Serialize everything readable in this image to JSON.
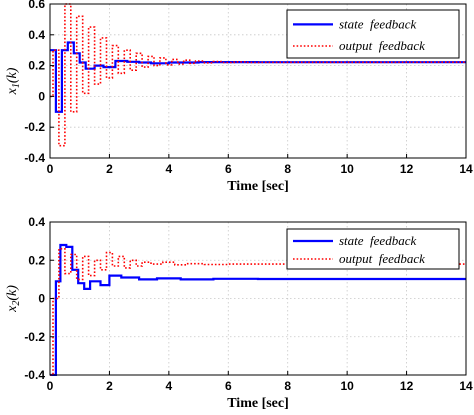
{
  "chart_data": [
    {
      "type": "line",
      "ylabel_main": "x",
      "ylabel_sub": "1",
      "ylabel_arg": "(k)",
      "xlabel": "Time [sec]",
      "xlim": [
        0,
        14
      ],
      "ylim": [
        -0.4,
        0.6
      ],
      "xticks": [
        0,
        2,
        4,
        6,
        8,
        10,
        12,
        14
      ],
      "yticks": [
        -0.4,
        -0.2,
        0,
        0.2,
        0.4,
        0.6
      ],
      "grid": true,
      "legend_position": "top-right",
      "colors": {
        "state": "#0000ff",
        "output": "#ff0000"
      },
      "series": [
        {
          "name": "state  feedback",
          "style": "solid",
          "points": [
            [
              0,
              0.3
            ],
            [
              0.2,
              0.3
            ],
            [
              0.2,
              -0.1
            ],
            [
              0.4,
              -0.1
            ],
            [
              0.4,
              0.3
            ],
            [
              0.6,
              0.3
            ],
            [
              0.6,
              0.35
            ],
            [
              0.8,
              0.35
            ],
            [
              0.8,
              0.28
            ],
            [
              1.0,
              0.28
            ],
            [
              1.0,
              0.22
            ],
            [
              1.2,
              0.22
            ],
            [
              1.2,
              0.18
            ],
            [
              1.5,
              0.18
            ],
            [
              1.5,
              0.2
            ],
            [
              1.8,
              0.2
            ],
            [
              1.8,
              0.19
            ],
            [
              2.2,
              0.19
            ],
            [
              2.2,
              0.23
            ],
            [
              2.6,
              0.23
            ],
            [
              2.6,
              0.225
            ],
            [
              3.0,
              0.225
            ],
            [
              3.0,
              0.22
            ],
            [
              3.4,
              0.22
            ],
            [
              3.4,
              0.215
            ],
            [
              4.0,
              0.215
            ],
            [
              4.0,
              0.22
            ],
            [
              5.0,
              0.22
            ],
            [
              5.0,
              0.223
            ],
            [
              7.0,
              0.223
            ],
            [
              7.0,
              0.222
            ],
            [
              14.0,
              0.222
            ]
          ]
        },
        {
          "name": "output  feedback",
          "style": "dotted",
          "points": [
            [
              0,
              0.0
            ],
            [
              0.1,
              0.0
            ],
            [
              0.1,
              0.3
            ],
            [
              0.3,
              0.3
            ],
            [
              0.3,
              -0.32
            ],
            [
              0.5,
              -0.32
            ],
            [
              0.5,
              0.6
            ],
            [
              0.7,
              0.6
            ],
            [
              0.7,
              -0.1
            ],
            [
              0.9,
              -0.1
            ],
            [
              0.9,
              0.52
            ],
            [
              1.1,
              0.52
            ],
            [
              1.1,
              0.02
            ],
            [
              1.3,
              0.02
            ],
            [
              1.3,
              0.45
            ],
            [
              1.5,
              0.45
            ],
            [
              1.5,
              0.08
            ],
            [
              1.7,
              0.08
            ],
            [
              1.7,
              0.38
            ],
            [
              1.9,
              0.38
            ],
            [
              1.9,
              0.12
            ],
            [
              2.1,
              0.12
            ],
            [
              2.1,
              0.33
            ],
            [
              2.3,
              0.33
            ],
            [
              2.3,
              0.15
            ],
            [
              2.5,
              0.15
            ],
            [
              2.5,
              0.3
            ],
            [
              2.7,
              0.3
            ],
            [
              2.7,
              0.17
            ],
            [
              2.9,
              0.17
            ],
            [
              2.9,
              0.28
            ],
            [
              3.1,
              0.28
            ],
            [
              3.1,
              0.19
            ],
            [
              3.3,
              0.19
            ],
            [
              3.3,
              0.26
            ],
            [
              3.5,
              0.26
            ],
            [
              3.5,
              0.2
            ],
            [
              3.7,
              0.2
            ],
            [
              3.7,
              0.25
            ],
            [
              3.9,
              0.25
            ],
            [
              3.9,
              0.205
            ],
            [
              4.1,
              0.205
            ],
            [
              4.1,
              0.24
            ],
            [
              4.3,
              0.24
            ],
            [
              4.3,
              0.21
            ],
            [
              4.5,
              0.21
            ],
            [
              4.5,
              0.235
            ],
            [
              4.7,
              0.235
            ],
            [
              4.7,
              0.215
            ],
            [
              4.9,
              0.215
            ],
            [
              4.9,
              0.23
            ],
            [
              5.2,
              0.23
            ],
            [
              5.2,
              0.218
            ],
            [
              5.5,
              0.218
            ],
            [
              5.5,
              0.226
            ],
            [
              5.8,
              0.226
            ],
            [
              5.8,
              0.22
            ],
            [
              6.2,
              0.22
            ],
            [
              6.2,
              0.224
            ],
            [
              6.6,
              0.224
            ],
            [
              6.6,
              0.221
            ],
            [
              14.0,
              0.222
            ]
          ]
        }
      ]
    },
    {
      "type": "line",
      "ylabel_main": "x",
      "ylabel_sub": "2",
      "ylabel_arg": "(k)",
      "xlabel": "Time [sec]",
      "xlim": [
        0,
        14
      ],
      "ylim": [
        -0.4,
        0.4
      ],
      "xticks": [
        0,
        2,
        4,
        6,
        8,
        10,
        12,
        14
      ],
      "yticks": [
        -0.4,
        -0.2,
        0,
        0.2,
        0.4
      ],
      "grid": true,
      "legend_position": "top-right",
      "colors": {
        "state": "#0000ff",
        "output": "#ff0000"
      },
      "series": [
        {
          "name": "state  feedback",
          "style": "solid",
          "points": [
            [
              0,
              -0.4
            ],
            [
              0.2,
              -0.4
            ],
            [
              0.2,
              0.09
            ],
            [
              0.35,
              0.09
            ],
            [
              0.35,
              0.28
            ],
            [
              0.55,
              0.28
            ],
            [
              0.55,
              0.27
            ],
            [
              0.75,
              0.27
            ],
            [
              0.75,
              0.15
            ],
            [
              0.95,
              0.15
            ],
            [
              0.95,
              0.08
            ],
            [
              1.15,
              0.08
            ],
            [
              1.15,
              0.05
            ],
            [
              1.35,
              0.05
            ],
            [
              1.35,
              0.09
            ],
            [
              1.7,
              0.09
            ],
            [
              1.7,
              0.07
            ],
            [
              2.0,
              0.07
            ],
            [
              2.0,
              0.12
            ],
            [
              2.4,
              0.12
            ],
            [
              2.4,
              0.11
            ],
            [
              3.0,
              0.11
            ],
            [
              3.0,
              0.1
            ],
            [
              3.6,
              0.1
            ],
            [
              3.6,
              0.105
            ],
            [
              4.4,
              0.105
            ],
            [
              4.4,
              0.1
            ],
            [
              5.5,
              0.1
            ],
            [
              5.5,
              0.103
            ],
            [
              7.0,
              0.103
            ],
            [
              7.0,
              0.102
            ],
            [
              14.0,
              0.102
            ]
          ]
        },
        {
          "name": "output  feedback",
          "style": "dotted",
          "points": [
            [
              0,
              -0.4
            ],
            [
              0.1,
              -0.4
            ],
            [
              0.1,
              0.0
            ],
            [
              0.3,
              0.0
            ],
            [
              0.3,
              0.26
            ],
            [
              0.5,
              0.26
            ],
            [
              0.5,
              0.13
            ],
            [
              0.7,
              0.13
            ],
            [
              0.7,
              0.23
            ],
            [
              0.9,
              0.23
            ],
            [
              0.9,
              0.1
            ],
            [
              1.1,
              0.1
            ],
            [
              1.1,
              0.22
            ],
            [
              1.3,
              0.22
            ],
            [
              1.3,
              0.12
            ],
            [
              1.5,
              0.12
            ],
            [
              1.5,
              0.2
            ],
            [
              1.7,
              0.2
            ],
            [
              1.7,
              0.15
            ],
            [
              1.9,
              0.15
            ],
            [
              1.9,
              0.24
            ],
            [
              2.1,
              0.24
            ],
            [
              2.1,
              0.17
            ],
            [
              2.3,
              0.17
            ],
            [
              2.3,
              0.22
            ],
            [
              2.5,
              0.22
            ],
            [
              2.5,
              0.16
            ],
            [
              2.7,
              0.16
            ],
            [
              2.7,
              0.2
            ],
            [
              2.9,
              0.2
            ],
            [
              2.9,
              0.17
            ],
            [
              3.1,
              0.17
            ],
            [
              3.1,
              0.19
            ],
            [
              3.4,
              0.19
            ],
            [
              3.4,
              0.18
            ],
            [
              3.8,
              0.18
            ],
            [
              3.8,
              0.19
            ],
            [
              4.2,
              0.19
            ],
            [
              4.2,
              0.176
            ],
            [
              4.6,
              0.176
            ],
            [
              4.6,
              0.182
            ],
            [
              5.2,
              0.182
            ],
            [
              5.2,
              0.178
            ],
            [
              6.0,
              0.178
            ],
            [
              6.0,
              0.18
            ],
            [
              14.0,
              0.18
            ]
          ]
        }
      ]
    }
  ]
}
